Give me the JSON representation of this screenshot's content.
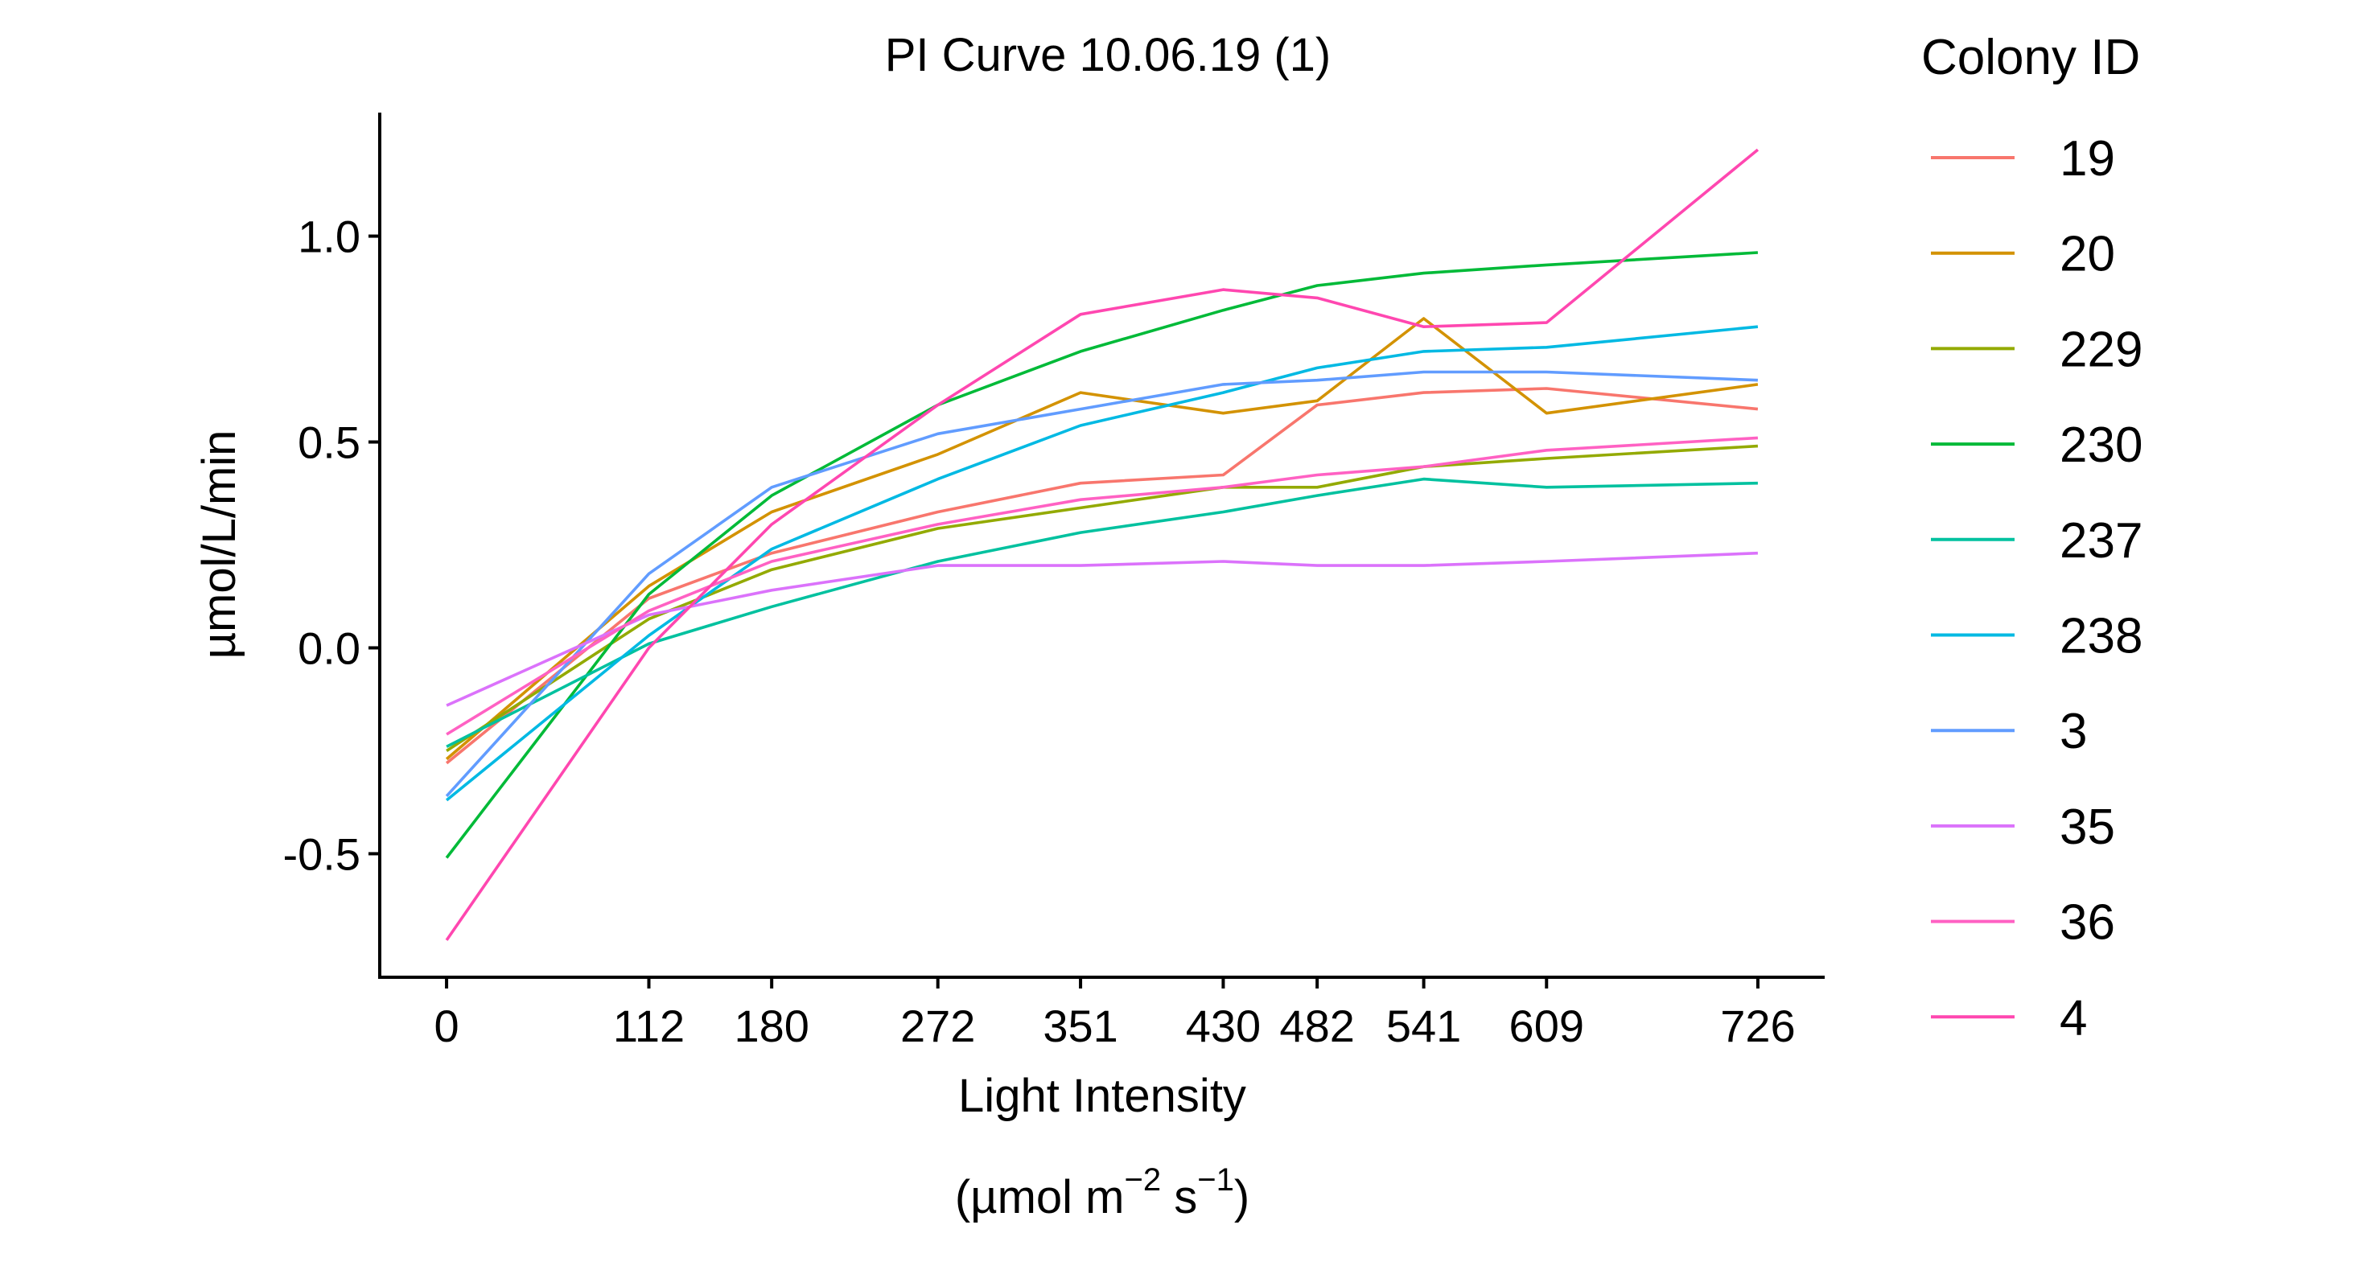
{
  "chart_data": {
    "type": "line",
    "title": "PI Curve 10.06.19 (1)",
    "xlabel": "Light Intensity",
    "xlabel_unit": "(µmol m⁻² s⁻¹)",
    "xlabel_unit_parts": {
      "open": "(µmol m",
      "exp1": "−2",
      "mid": " s",
      "exp2": "−1",
      "close": ")"
    },
    "ylabel": "µmol/L/min",
    "x": [
      0,
      112,
      180,
      272,
      351,
      430,
      482,
      541,
      609,
      726
    ],
    "x_tick_labels": [
      "0",
      "112",
      "180",
      "272",
      "351",
      "430",
      "482",
      "541",
      "609",
      "726"
    ],
    "xlim": [
      -37,
      763
    ],
    "ylim": [
      -0.8,
      1.3
    ],
    "y_ticks": [
      -0.5,
      0.0,
      0.5,
      1.0
    ],
    "y_tick_labels": [
      "-0.5",
      "0.0",
      "0.5",
      "1.0"
    ],
    "legend_title": "Colony ID",
    "legend_position": "right",
    "grid": false,
    "series": [
      {
        "name": "19",
        "color": "#F8766D",
        "values": [
          -0.28,
          0.12,
          0.23,
          0.33,
          0.4,
          0.42,
          0.59,
          0.62,
          0.63,
          0.58
        ]
      },
      {
        "name": "20",
        "color": "#D39200",
        "values": [
          -0.27,
          0.15,
          0.33,
          0.47,
          0.62,
          0.57,
          0.6,
          0.8,
          0.57,
          0.64
        ]
      },
      {
        "name": "229",
        "color": "#93AA00",
        "values": [
          -0.25,
          0.07,
          0.19,
          0.29,
          0.34,
          0.39,
          0.39,
          0.44,
          0.46,
          0.49
        ]
      },
      {
        "name": "230",
        "color": "#00BA38",
        "values": [
          -0.51,
          0.13,
          0.37,
          0.59,
          0.72,
          0.82,
          0.88,
          0.91,
          0.93,
          0.96
        ]
      },
      {
        "name": "237",
        "color": "#00C19F",
        "values": [
          -0.24,
          0.01,
          0.1,
          0.21,
          0.28,
          0.33,
          0.37,
          0.41,
          0.39,
          0.4
        ]
      },
      {
        "name": "238",
        "color": "#00B9E3",
        "values": [
          -0.37,
          0.03,
          0.24,
          0.41,
          0.54,
          0.62,
          0.68,
          0.72,
          0.73,
          0.78
        ]
      },
      {
        "name": "3",
        "color": "#619CFF",
        "values": [
          -0.36,
          0.18,
          0.39,
          0.52,
          0.58,
          0.64,
          0.65,
          0.67,
          0.67,
          0.65
        ]
      },
      {
        "name": "35",
        "color": "#DB72FB",
        "values": [
          -0.14,
          0.08,
          0.14,
          0.2,
          0.2,
          0.21,
          0.2,
          0.2,
          0.21,
          0.23
        ]
      },
      {
        "name": "36",
        "color": "#FF61C3",
        "values": [
          -0.21,
          0.09,
          0.21,
          0.3,
          0.36,
          0.39,
          0.42,
          0.44,
          0.48,
          0.51
        ]
      },
      {
        "name": "4",
        "color": "#FF47B0",
        "values": [
          -0.71,
          0.0,
          0.3,
          0.59,
          0.81,
          0.87,
          0.85,
          0.78,
          0.79,
          1.21
        ]
      }
    ]
  }
}
